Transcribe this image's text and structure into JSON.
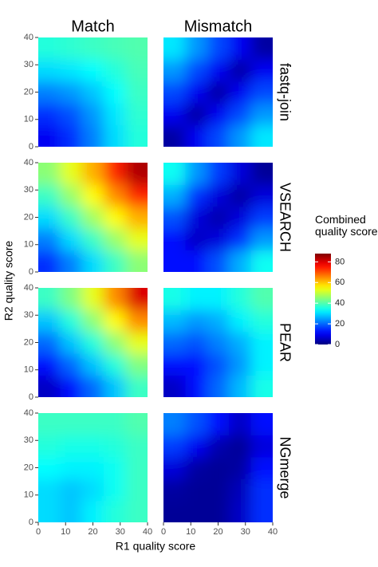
{
  "chart_data": {
    "type": "heatmap",
    "columns": [
      "Match",
      "Mismatch"
    ],
    "rows": [
      "fastq-join",
      "VSEARCH",
      "PEAR",
      "NGmerge"
    ],
    "x_label": "R1 quality score",
    "y_label": "R2 quality score",
    "xlim": [
      0,
      40
    ],
    "xticks": [
      0,
      10,
      20,
      30,
      40
    ],
    "ylim": [
      0,
      40
    ],
    "yticks": [
      0,
      10,
      20,
      30,
      40
    ],
    "xbins": [
      0,
      8,
      16,
      24,
      32,
      40
    ],
    "ybins": [
      0,
      8,
      16,
      24,
      32,
      40
    ],
    "panels": [
      {
        "values": [
          [
            10,
            15,
            22,
            30,
            36
          ],
          [
            15,
            18,
            24,
            31,
            37
          ],
          [
            22,
            24,
            28,
            33,
            38
          ],
          [
            30,
            31,
            33,
            36,
            39
          ],
          [
            36,
            37,
            38,
            39,
            40
          ]
        ]
      },
      {
        "values": [
          [
            3,
            10,
            17,
            24,
            31
          ],
          [
            10,
            3,
            10,
            17,
            24
          ],
          [
            17,
            10,
            3,
            10,
            17
          ],
          [
            24,
            17,
            10,
            3,
            10
          ],
          [
            31,
            24,
            17,
            10,
            3
          ]
        ]
      },
      {
        "values": [
          [
            15,
            22,
            30,
            38,
            45
          ],
          [
            22,
            30,
            38,
            46,
            53
          ],
          [
            30,
            38,
            47,
            55,
            62
          ],
          [
            38,
            46,
            55,
            65,
            74
          ],
          [
            45,
            53,
            62,
            74,
            84
          ]
        ]
      },
      {
        "values": [
          [
            12,
            12,
            18,
            26,
            34
          ],
          [
            12,
            6,
            8,
            15,
            24
          ],
          [
            18,
            8,
            4,
            8,
            16
          ],
          [
            26,
            15,
            8,
            3,
            8
          ],
          [
            34,
            24,
            16,
            8,
            2
          ]
        ]
      },
      {
        "values": [
          [
            6,
            12,
            20,
            28,
            38
          ],
          [
            12,
            20,
            28,
            36,
            44
          ],
          [
            20,
            28,
            36,
            45,
            53
          ],
          [
            28,
            36,
            45,
            55,
            65
          ],
          [
            38,
            44,
            53,
            65,
            80
          ]
        ]
      },
      {
        "values": [
          [
            6,
            12,
            20,
            27,
            35
          ],
          [
            12,
            12,
            18,
            24,
            32
          ],
          [
            20,
            18,
            22,
            26,
            32
          ],
          [
            27,
            24,
            26,
            32,
            36
          ],
          [
            35,
            32,
            32,
            36,
            40
          ]
        ]
      },
      {
        "values": [
          [
            30,
            28,
            32,
            36,
            38
          ],
          [
            30,
            28,
            30,
            34,
            38
          ],
          [
            33,
            32,
            32,
            34,
            38
          ],
          [
            36,
            35,
            35,
            36,
            38
          ],
          [
            38,
            38,
            38,
            38,
            40
          ]
        ]
      },
      {
        "values": [
          [
            2,
            2,
            2,
            6,
            15
          ],
          [
            3,
            2,
            2,
            5,
            15
          ],
          [
            8,
            3,
            2,
            3,
            12
          ],
          [
            16,
            10,
            4,
            2,
            8
          ],
          [
            22,
            18,
            12,
            6,
            12
          ]
        ]
      }
    ],
    "colorbar": {
      "title": "Combined quality score",
      "lim": [
        0,
        88
      ],
      "ticks": [
        0,
        20,
        40,
        60,
        80
      ]
    }
  }
}
